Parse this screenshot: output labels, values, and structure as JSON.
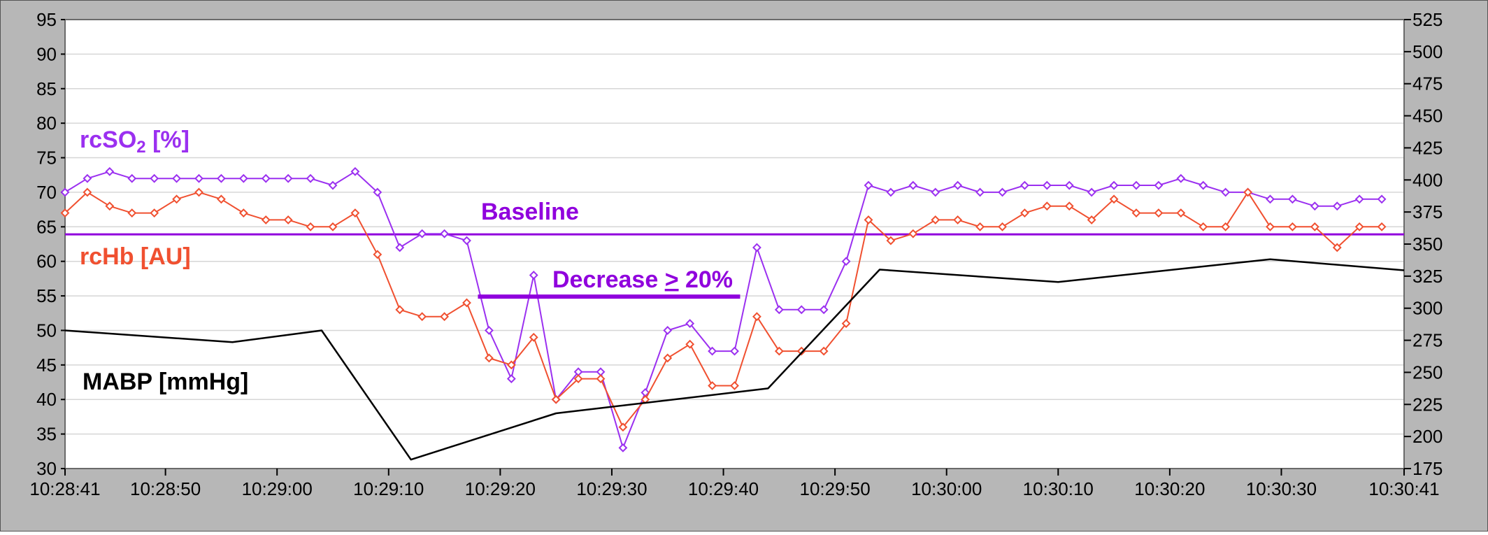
{
  "chart_data": {
    "type": "line",
    "grid": true,
    "x_tick_labels": [
      "10:28:41",
      "10:28:50",
      "10:29:00",
      "10:29:10",
      "10:29:20",
      "10:29:30",
      "10:29:40",
      "10:29:50",
      "10:30:00",
      "10:30:10",
      "10:30:20",
      "10:30:30",
      "10:30:41"
    ],
    "x_tick_seconds": [
      0,
      9,
      19,
      29,
      39,
      49,
      59,
      69,
      79,
      89,
      99,
      109,
      120
    ],
    "x_range_seconds": [
      0,
      120
    ],
    "y_left": {
      "range": [
        30,
        95
      ],
      "ticks": [
        30,
        35,
        40,
        45,
        50,
        55,
        60,
        65,
        70,
        75,
        80,
        85,
        90,
        95
      ]
    },
    "y_right": {
      "range": [
        175,
        525
      ],
      "ticks": [
        175,
        200,
        225,
        250,
        275,
        300,
        325,
        350,
        375,
        400,
        425,
        450,
        475,
        500,
        525
      ],
      "tick_labels": [
        "175",
        "200",
        "225",
        "250",
        "275",
        "300",
        "325",
        "350",
        "375",
        "400",
        "425",
        "450",
        "475",
        "500",
        "525"
      ]
    },
    "colors": {
      "rcso2": "#9B30F0",
      "rchb": "#F05030",
      "mabp": "#000000",
      "baseline": "#9000DD",
      "grid": "#D6D6D6",
      "frame_bg": "#B7B7B7"
    },
    "series": [
      {
        "name": "rcSO2 [%]",
        "axis": "left",
        "marker": "diamond",
        "x": [
          0,
          2,
          4,
          6,
          8,
          10,
          12,
          14,
          16,
          18,
          20,
          22,
          24,
          26,
          28,
          30,
          32,
          34,
          36,
          38,
          40,
          42,
          44,
          46,
          48,
          50,
          52,
          54,
          56,
          58,
          60,
          62,
          64,
          66,
          68,
          70,
          72,
          74,
          76,
          78,
          80,
          82,
          84,
          86,
          88,
          90,
          92,
          94,
          96,
          98,
          100,
          102,
          104,
          106,
          108,
          110,
          112,
          114,
          116,
          118
        ],
        "values": [
          70,
          72,
          73,
          72,
          72,
          72,
          72,
          72,
          72,
          72,
          72,
          72,
          71,
          73,
          70,
          62,
          64,
          64,
          63,
          50,
          43,
          58,
          40,
          44,
          44,
          33,
          41,
          50,
          51,
          47,
          47,
          62,
          53,
          53,
          53,
          60,
          71,
          70,
          71,
          70,
          71,
          70,
          70,
          71,
          71,
          71,
          70,
          71,
          71,
          71,
          72,
          71,
          70,
          70,
          69,
          69,
          68,
          68,
          69,
          69
        ]
      },
      {
        "name": "rcHb [AU]",
        "axis": "left",
        "marker": "diamond",
        "x": [
          0,
          2,
          4,
          6,
          8,
          10,
          12,
          14,
          16,
          18,
          20,
          22,
          24,
          26,
          28,
          30,
          32,
          34,
          36,
          38,
          40,
          42,
          44,
          46,
          48,
          50,
          52,
          54,
          56,
          58,
          60,
          62,
          64,
          66,
          68,
          70,
          72,
          74,
          76,
          78,
          80,
          82,
          84,
          86,
          88,
          90,
          92,
          94,
          96,
          98,
          100,
          102,
          104,
          106,
          108,
          110,
          112,
          114,
          116,
          118
        ],
        "values": [
          67,
          70,
          68,
          67,
          67,
          69,
          70,
          69,
          67,
          66,
          66,
          65,
          65,
          67,
          61,
          53,
          52,
          52,
          54,
          46,
          45,
          49,
          40,
          43,
          43,
          36,
          40,
          46,
          48,
          42,
          42,
          52,
          47,
          47,
          47,
          51,
          66,
          63,
          64,
          66,
          66,
          65,
          65,
          67,
          68,
          68,
          66,
          69,
          67,
          67,
          67,
          65,
          65,
          70,
          65,
          65,
          65,
          62,
          65,
          65
        ]
      },
      {
        "name": "MABP [mmHg]",
        "axis": "left",
        "marker": "none",
        "x": [
          0,
          15,
          23,
          31,
          44,
          63,
          73,
          89,
          108,
          120
        ],
        "values": [
          50,
          48.3,
          50,
          31.3,
          38,
          41.6,
          58.8,
          57,
          60.3,
          58.7
        ]
      }
    ],
    "baseline": {
      "label": "Baseline",
      "value": 63.9
    },
    "annotations": {
      "rcso2_label": "rcSO",
      "rcso2_sub": "2",
      "rcso2_unit": " [%]",
      "rchb_label": "rcHb [AU]",
      "mabp_label": "MABP [mmHg]",
      "decrease_prefix": "Decrease ",
      "decrease_symbol": ">",
      "decrease_suffix": " 20%",
      "decrease_bar": {
        "x_start": 37,
        "x_end": 60.5,
        "y": 54.9
      }
    }
  }
}
